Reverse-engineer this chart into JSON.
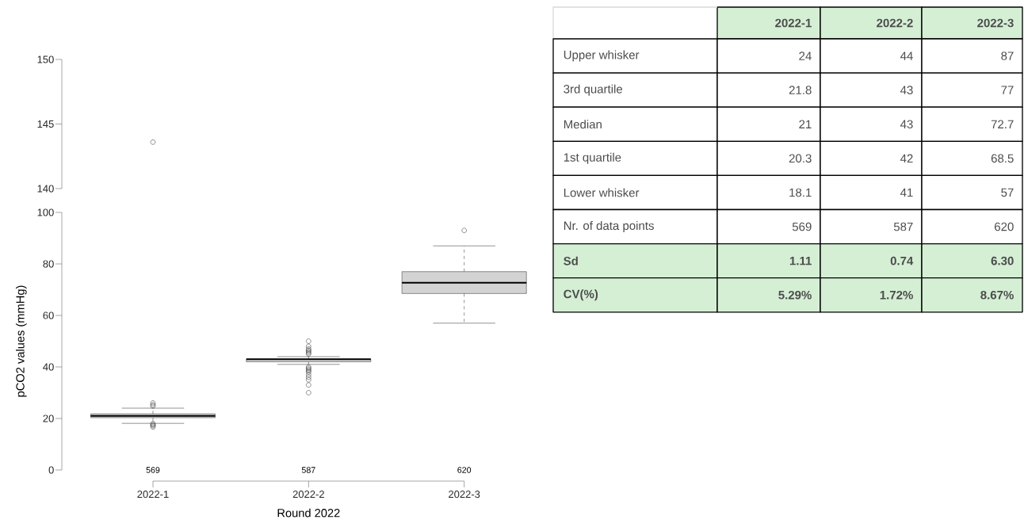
{
  "chart_data": [
    {
      "type": "scatter",
      "categories": [
        "2022-1",
        "2022-2",
        "2022-3"
      ],
      "values": [
        143.6,
        null,
        null
      ],
      "ylim": [
        140,
        150
      ],
      "yticks": [
        140,
        145,
        150
      ],
      "marker": "circle",
      "tick_labels": "y"
    },
    {
      "type": "box",
      "xlabel": "Round 2022",
      "ylabel": "pCO2 values (mmHg)",
      "categories": [
        "2022-1",
        "2022-2",
        "2022-3"
      ],
      "color": "#d3d3d3",
      "ylim": [
        0,
        100
      ],
      "yticks": [
        0,
        20,
        40,
        60,
        80,
        100
      ],
      "boxes": [
        {
          "low": 18.1,
          "q1": 20.3,
          "median": 21,
          "q3": 21.8,
          "high": 24,
          "outliers": [
            16.7,
            17.2,
            17.6,
            18,
            24.8,
            25.3,
            26
          ]
        },
        {
          "low": 41,
          "q1": 42,
          "median": 43,
          "q3": 43,
          "high": 44,
          "outliers": [
            30,
            33,
            35,
            36,
            37,
            38,
            38.5,
            39,
            39.5,
            40,
            45,
            45.5,
            46,
            46.5,
            47,
            48,
            50
          ]
        },
        {
          "low": 57,
          "q1": 68.5,
          "median": 72.7,
          "q3": 77,
          "high": 87,
          "outliers": [
            93
          ]
        }
      ],
      "annotations": [
        "569",
        "587",
        "620"
      ]
    },
    {
      "type": "other",
      "color": "#d5efd5",
      "categories": [
        "2022-1",
        "2022-2",
        "2022-3"
      ],
      "y_categories": [
        "Upper whisker",
        "3rd quartile",
        "Median",
        "1st quartile",
        "Lower whisker",
        "Nr. of data points",
        "Sd",
        "CV(%)"
      ],
      "cell_labels": [
        [
          "24",
          "44",
          "87"
        ],
        [
          "21.8",
          "43",
          "77"
        ],
        [
          "21",
          "43",
          "72.7"
        ],
        [
          "20.3",
          "42",
          "68.5"
        ],
        [
          "18.1",
          "41",
          "57"
        ],
        [
          "569",
          "587",
          "620"
        ],
        [
          "1.11",
          "0.74",
          "6.30"
        ],
        [
          "5.29%",
          "1.72%",
          "8.67%"
        ]
      ]
    }
  ]
}
